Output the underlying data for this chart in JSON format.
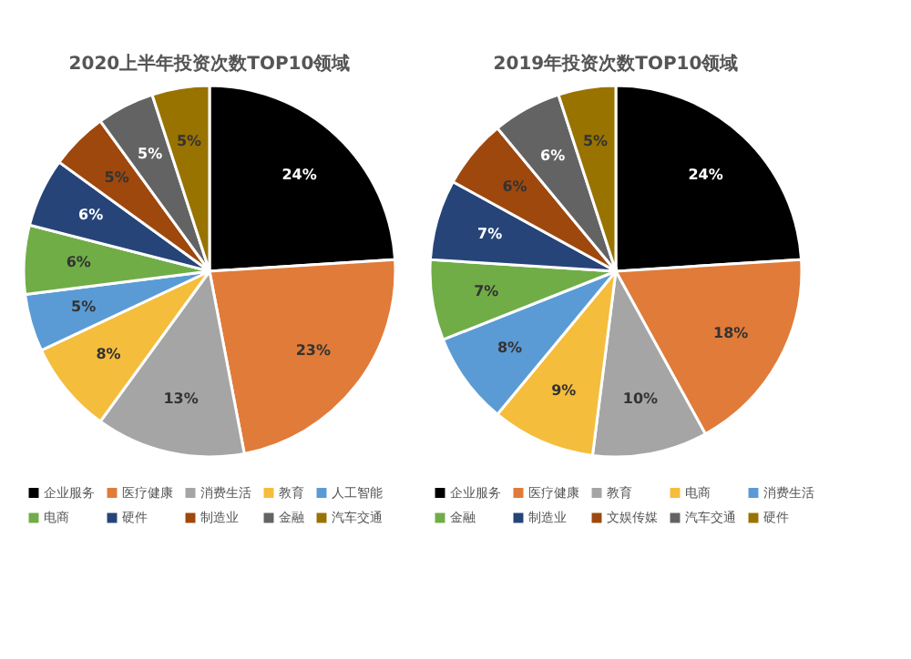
{
  "chart_data": [
    {
      "type": "pie",
      "title": "2020上半年投资次数TOP10领域",
      "categories": [
        "企业服务",
        "医疗健康",
        "消费生活",
        "教育",
        "人工智能",
        "电商",
        "硬件",
        "制造业",
        "金融",
        "汽车交通"
      ],
      "values": [
        24,
        23,
        13,
        8,
        5,
        6,
        6,
        5,
        5,
        5
      ],
      "value_labels": [
        "24%",
        "23%",
        "13%",
        "8%",
        "5%",
        "6%",
        "6%",
        "5%",
        "5%",
        "5%"
      ],
      "colors": [
        "#000000",
        "#e07b39",
        "#a5a5a5",
        "#f5bd3c",
        "#5b9bd5",
        "#70ad47",
        "#264478",
        "#9e480e",
        "#636363",
        "#997300"
      ],
      "legend": "bottom"
    },
    {
      "type": "pie",
      "title": "2019年投资次数TOP10领域",
      "categories": [
        "企业服务",
        "医疗健康",
        "教育",
        "电商",
        "消费生活",
        "金融",
        "制造业",
        "文娱传媒",
        "汽车交通",
        "硬件"
      ],
      "values": [
        24,
        18,
        10,
        9,
        8,
        7,
        7,
        6,
        6,
        5
      ],
      "value_labels": [
        "24%",
        "18%",
        "10%",
        "9%",
        "8%",
        "7%",
        "7%",
        "6%",
        "6%",
        "5%"
      ],
      "colors": [
        "#000000",
        "#e07b39",
        "#a5a5a5",
        "#f5bd3c",
        "#5b9bd5",
        "#70ad47",
        "#264478",
        "#9e480e",
        "#636363",
        "#997300"
      ],
      "legend": "bottom"
    }
  ]
}
